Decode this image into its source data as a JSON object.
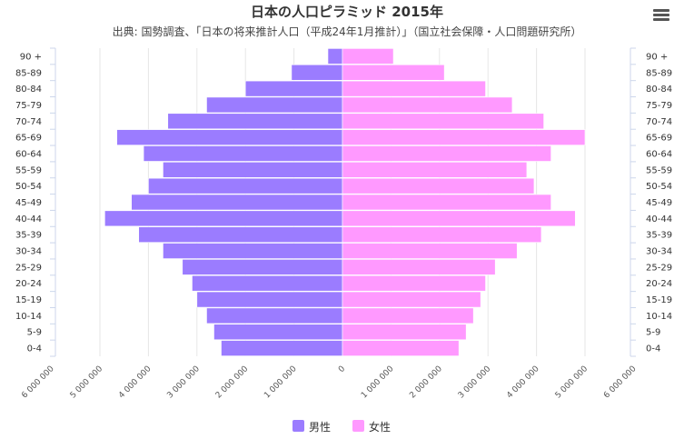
{
  "chart_data": {
    "type": "bar",
    "orientation": "horizontal-pyramid",
    "title": "日本の人口ピラミッド 2015年",
    "subtitle": "出典: 国勢調査、「日本の将来推計人口（平成24年1月推計）」（国立社会保障・人口問題研究所）",
    "categories": [
      "0-4",
      "5-9",
      "10-14",
      "15-19",
      "20-24",
      "25-29",
      "30-34",
      "35-39",
      "40-44",
      "45-49",
      "50-54",
      "55-59",
      "60-64",
      "65-69",
      "70-74",
      "75-79",
      "80-84",
      "85-89",
      "90 +"
    ],
    "series": [
      {
        "name": "男性",
        "color": "#9b7cff",
        "values": [
          2500000,
          2650000,
          2800000,
          3000000,
          3100000,
          3300000,
          3700000,
          4200000,
          4900000,
          4350000,
          4000000,
          3700000,
          4100000,
          4650000,
          3600000,
          2800000,
          2000000,
          1050000,
          300000
        ]
      },
      {
        "name": "女性",
        "color": "#ff99ff",
        "values": [
          2400000,
          2550000,
          2700000,
          2850000,
          2950000,
          3150000,
          3600000,
          4100000,
          4800000,
          4300000,
          3950000,
          3800000,
          4300000,
          5000000,
          4150000,
          3500000,
          2950000,
          2100000,
          1050000
        ]
      }
    ],
    "x_axis": {
      "ticks": [
        -6000000,
        -5000000,
        -4000000,
        -3000000,
        -2000000,
        -1000000,
        0,
        1000000,
        2000000,
        3000000,
        4000000,
        5000000,
        6000000
      ],
      "tick_labels": [
        "6 000 000",
        "5 000 000",
        "4 000 000",
        "3 000 000",
        "2 000 000",
        "1 000 000",
        "0",
        "1 000 000",
        "2 000 000",
        "3 000 000",
        "4 000 000",
        "5 000 000",
        "6 000 000"
      ],
      "range": [
        -6000000,
        6000000
      ]
    },
    "grid": true,
    "legend": {
      "position": "bottom-center",
      "items": [
        "男性",
        "女性"
      ]
    }
  },
  "menu": {
    "icon": "menu-icon"
  }
}
